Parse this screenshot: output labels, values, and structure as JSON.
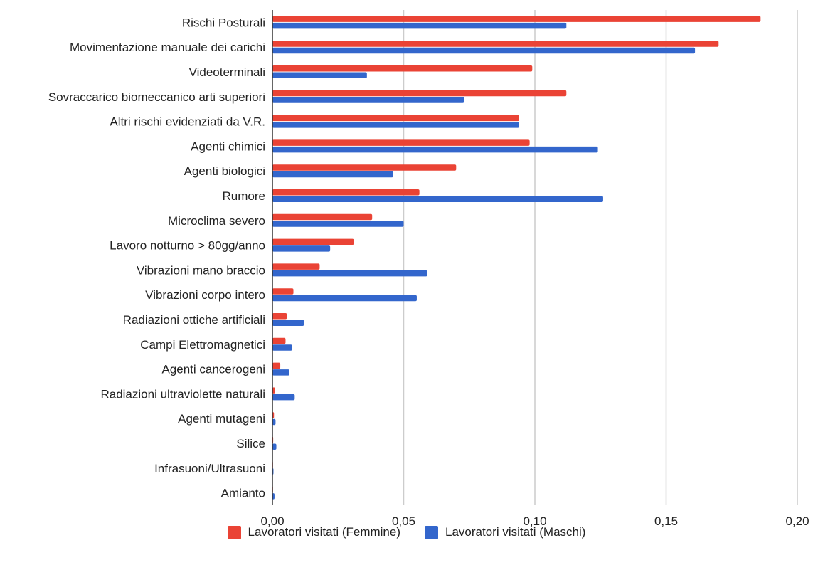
{
  "chart_data": {
    "type": "bar",
    "orientation": "horizontal",
    "categories": [
      "Rischi Posturali",
      "Movimentazione manuale dei carichi",
      "Videoterminali",
      "Sovraccarico biomeccanico arti superiori",
      "Altri rischi evidenziati da V.R.",
      "Agenti chimici",
      "Agenti biologici",
      "Rumore",
      "Microclima severo",
      "Lavoro notturno > 80gg/anno",
      "Vibrazioni mano braccio",
      "Vibrazioni corpo intero",
      "Radiazioni ottiche artificiali",
      "Campi Elettromagnetici",
      "Agenti cancerogeni",
      "Radiazioni ultraviolette naturali",
      "Agenti mutageni",
      "Silice",
      "Infrasuoni/Ultrasuoni",
      "Amianto"
    ],
    "series": [
      {
        "name": "Lavoratori visitati (Femmine)",
        "color": "#ea4335",
        "values": [
          0.186,
          0.17,
          0.099,
          0.112,
          0.094,
          0.098,
          0.07,
          0.056,
          0.038,
          0.031,
          0.018,
          0.008,
          0.0055,
          0.005,
          0.003,
          0.001,
          0.0006,
          0.0003,
          0.0002,
          0.0002
        ]
      },
      {
        "name": "Lavoratori visitati (Maschi)",
        "color": "#3366cc",
        "values": [
          0.112,
          0.161,
          0.036,
          0.073,
          0.094,
          0.124,
          0.046,
          0.126,
          0.05,
          0.022,
          0.059,
          0.055,
          0.012,
          0.0075,
          0.0065,
          0.0085,
          0.0012,
          0.0015,
          0.0004,
          0.0008
        ]
      }
    ],
    "xlim": [
      0,
      0.2
    ],
    "xticks": [
      "0,00",
      "0,05",
      "0,10",
      "0,15",
      "0,20"
    ],
    "xtick_values": [
      0,
      0.05,
      0.1,
      0.15,
      0.2
    ],
    "grid": true,
    "legend_position": "bottom"
  }
}
